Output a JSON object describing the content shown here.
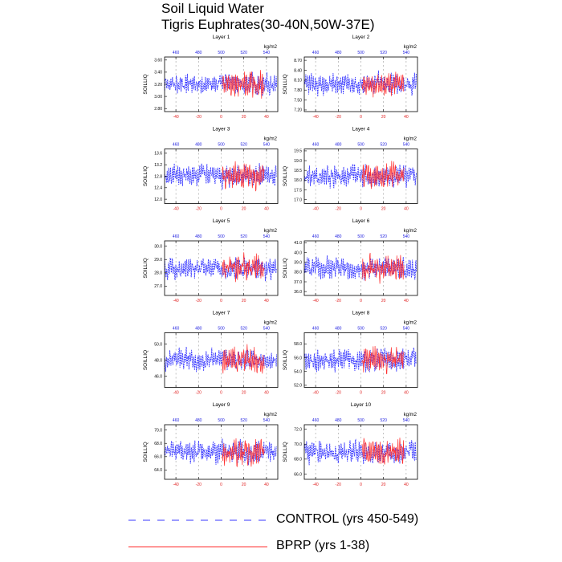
{
  "figure": {
    "title_line1": "Soil Liquid Water",
    "title_line2": "Tigris Euphrates(30-40N,50W-37E)"
  },
  "legend": {
    "control_label": "CONTROL (yrs 450-549)",
    "bprp_label": "BPRP (yrs 1-38)",
    "control_color": "#3a3aff",
    "bprp_color": "#ff3030"
  },
  "chart_data": [
    {
      "type": "line",
      "title": "Layer 1",
      "ylabel": "SOILLIQ",
      "units": "kg/m2",
      "yticks": [
        "3.60",
        "3.40",
        "3.20",
        "3.00",
        "2.80"
      ],
      "ylim": [
        2.75,
        3.65
      ],
      "x_bottom_ticks": [
        "-40",
        "-20",
        "0",
        "20",
        "40"
      ],
      "x_top_ticks": [
        "460",
        "480",
        "500",
        "520",
        "540"
      ],
      "xlim": [
        -50,
        50
      ],
      "series": [
        {
          "name": "CONTROL (yrs 450-549)",
          "color": "#3a3aff",
          "seed": 11
        },
        {
          "name": "BPRP (yrs 1-38)",
          "color": "#ff3030",
          "seed": 12,
          "x_range": [
            1,
            38
          ]
        }
      ]
    },
    {
      "type": "line",
      "title": "Layer 2",
      "ylabel": "SOILLIQ",
      "units": "kg/m2",
      "yticks": [
        "8.70",
        "8.40",
        "8.10",
        "7.80",
        "7.50",
        "7.20"
      ],
      "ylim": [
        7.15,
        8.8
      ],
      "x_bottom_ticks": [
        "-40",
        "-20",
        "0",
        "20",
        "40"
      ],
      "x_top_ticks": [
        "460",
        "480",
        "500",
        "520",
        "540"
      ],
      "xlim": [
        -50,
        50
      ],
      "series": [
        {
          "name": "CONTROL (yrs 450-549)",
          "color": "#3a3aff",
          "seed": 21
        },
        {
          "name": "BPRP (yrs 1-38)",
          "color": "#ff3030",
          "seed": 22,
          "x_range": [
            1,
            38
          ]
        }
      ]
    },
    {
      "type": "line",
      "title": "Layer 3",
      "ylabel": "SOILLIQ",
      "units": "kg/m2",
      "yticks": [
        "13.6",
        "13.2",
        "12.8",
        "12.4",
        "12.0"
      ],
      "ylim": [
        11.85,
        13.75
      ],
      "x_bottom_ticks": [
        "-40",
        "-20",
        "0",
        "20",
        "40"
      ],
      "x_top_ticks": [
        "460",
        "480",
        "500",
        "520",
        "540"
      ],
      "xlim": [
        -50,
        50
      ],
      "series": [
        {
          "name": "CONTROL (yrs 450-549)",
          "color": "#3a3aff",
          "seed": 31
        },
        {
          "name": "BPRP (yrs 1-38)",
          "color": "#ff3030",
          "seed": 32,
          "x_range": [
            1,
            38
          ]
        }
      ]
    },
    {
      "type": "line",
      "title": "Layer 4",
      "ylabel": "SOILLIQ",
      "units": "kg/m2",
      "yticks": [
        "19.5",
        "19.0",
        "18.5",
        "18.0",
        "17.5",
        "17.0"
      ],
      "ylim": [
        16.8,
        19.6
      ],
      "x_bottom_ticks": [
        "-40",
        "-20",
        "0",
        "20",
        "40"
      ],
      "x_top_ticks": [
        "460",
        "480",
        "500",
        "520",
        "540"
      ],
      "xlim": [
        -50,
        50
      ],
      "series": [
        {
          "name": "CONTROL (yrs 450-549)",
          "color": "#3a3aff",
          "seed": 41
        },
        {
          "name": "BPRP (yrs 1-38)",
          "color": "#ff3030",
          "seed": 42,
          "x_range": [
            1,
            38
          ]
        }
      ]
    },
    {
      "type": "line",
      "title": "Layer 5",
      "ylabel": "SOILLIQ",
      "units": "kg/m2",
      "yticks": [
        "30.0",
        "29.0",
        "28.0",
        "27.0"
      ],
      "ylim": [
        26.3,
        30.4
      ],
      "x_bottom_ticks": [
        "-40",
        "-20",
        "0",
        "20",
        "40"
      ],
      "x_top_ticks": [
        "460",
        "480",
        "500",
        "520",
        "540"
      ],
      "xlim": [
        -50,
        50
      ],
      "series": [
        {
          "name": "CONTROL (yrs 450-549)",
          "color": "#3a3aff",
          "seed": 51
        },
        {
          "name": "BPRP (yrs 1-38)",
          "color": "#ff3030",
          "seed": 52,
          "x_range": [
            1,
            38
          ]
        }
      ]
    },
    {
      "type": "line",
      "title": "Layer 6",
      "ylabel": "SOILLIQ",
      "units": "kg/m2",
      "yticks": [
        "41.0",
        "40.0",
        "39.0",
        "38.0",
        "37.0",
        "36.0"
      ],
      "ylim": [
        35.6,
        41.2
      ],
      "x_bottom_ticks": [
        "-40",
        "-20",
        "0",
        "20",
        "40"
      ],
      "x_top_ticks": [
        "460",
        "480",
        "500",
        "520",
        "540"
      ],
      "xlim": [
        -50,
        50
      ],
      "series": [
        {
          "name": "CONTROL (yrs 450-549)",
          "color": "#3a3aff",
          "seed": 61
        },
        {
          "name": "BPRP (yrs 1-38)",
          "color": "#ff3030",
          "seed": 62,
          "x_range": [
            1,
            38
          ]
        }
      ]
    },
    {
      "type": "line",
      "title": "Layer 7",
      "ylabel": "SOILLIQ",
      "units": "kg/m2",
      "yticks": [
        "50.0",
        "48.0",
        "46.0"
      ],
      "ylim": [
        44.6,
        51.4
      ],
      "x_bottom_ticks": [
        "-40",
        "-20",
        "0",
        "20",
        "40"
      ],
      "x_top_ticks": [
        "460",
        "480",
        "500",
        "520",
        "540"
      ],
      "xlim": [
        -50,
        50
      ],
      "series": [
        {
          "name": "CONTROL (yrs 450-549)",
          "color": "#3a3aff",
          "seed": 71
        },
        {
          "name": "BPRP (yrs 1-38)",
          "color": "#ff3030",
          "seed": 72,
          "x_range": [
            1,
            38
          ]
        }
      ]
    },
    {
      "type": "line",
      "title": "Layer 8",
      "ylabel": "SOILLIQ",
      "units": "kg/m2",
      "yticks": [
        "58.0",
        "56.0",
        "54.0",
        "52.0"
      ],
      "ylim": [
        51.7,
        59.6
      ],
      "x_bottom_ticks": [
        "-40",
        "-20",
        "0",
        "20",
        "40"
      ],
      "x_top_ticks": [
        "460",
        "480",
        "500",
        "520",
        "540"
      ],
      "xlim": [
        -50,
        50
      ],
      "series": [
        {
          "name": "CONTROL (yrs 450-549)",
          "color": "#3a3aff",
          "seed": 81
        },
        {
          "name": "BPRP (yrs 1-38)",
          "color": "#ff3030",
          "seed": 82,
          "x_range": [
            1,
            38
          ]
        }
      ]
    },
    {
      "type": "line",
      "title": "Layer 9",
      "ylabel": "SOILLIQ",
      "units": "kg/m2",
      "yticks": [
        "70.0",
        "68.0",
        "66.0",
        "64.0"
      ],
      "ylim": [
        62.6,
        70.8
      ],
      "x_bottom_ticks": [
        "-40",
        "-20",
        "0",
        "20",
        "40"
      ],
      "x_top_ticks": [
        "460",
        "480",
        "500",
        "520",
        "540"
      ],
      "xlim": [
        -50,
        50
      ],
      "series": [
        {
          "name": "CONTROL (yrs 450-549)",
          "color": "#3a3aff",
          "seed": 91
        },
        {
          "name": "BPRP (yrs 1-38)",
          "color": "#ff3030",
          "seed": 92,
          "x_range": [
            1,
            38
          ]
        }
      ]
    },
    {
      "type": "line",
      "title": "Layer 10",
      "ylabel": "SOILLIQ",
      "units": "kg/m2",
      "yticks": [
        "72.0",
        "70.0",
        "68.0",
        "66.0"
      ],
      "ylim": [
        65.3,
        72.6
      ],
      "x_bottom_ticks": [
        "-40",
        "-20",
        "0",
        "20",
        "40"
      ],
      "x_top_ticks": [
        "460",
        "480",
        "500",
        "520",
        "540"
      ],
      "xlim": [
        -50,
        50
      ],
      "series": [
        {
          "name": "CONTROL (yrs 450-549)",
          "color": "#3a3aff",
          "seed": 101
        },
        {
          "name": "BPRP (yrs 1-38)",
          "color": "#ff3030",
          "seed": 102,
          "x_range": [
            1,
            38
          ]
        }
      ]
    }
  ]
}
